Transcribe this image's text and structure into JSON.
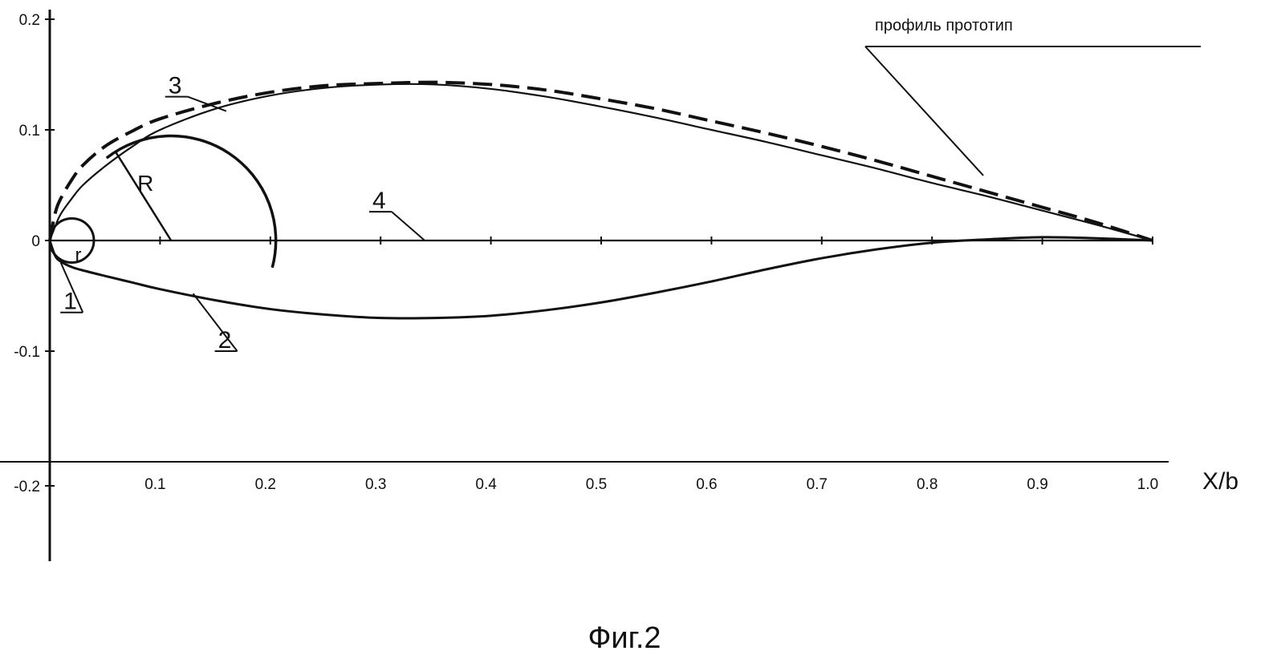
{
  "chart_data": {
    "type": "line",
    "title": "",
    "caption": "Фиг.2",
    "xlabel": "X/b",
    "ylabel": "",
    "xlim": [
      0,
      1.0
    ],
    "ylim": [
      -0.2,
      0.2
    ],
    "grid": false,
    "x_ticks": [
      {
        "v": 0.1,
        "label": "0.1"
      },
      {
        "v": 0.2,
        "label": "0.2"
      },
      {
        "v": 0.3,
        "label": "0.3"
      },
      {
        "v": 0.4,
        "label": "0.4"
      },
      {
        "v": 0.5,
        "label": "0.5"
      },
      {
        "v": 0.6,
        "label": "0.6"
      },
      {
        "v": 0.7,
        "label": "0.7"
      },
      {
        "v": 0.8,
        "label": "0.8"
      },
      {
        "v": 0.9,
        "label": "0.9"
      },
      {
        "v": 1.0,
        "label": "1.0"
      }
    ],
    "y_ticks": [
      {
        "v": 0.2,
        "label": "0.2"
      },
      {
        "v": 0.1,
        "label": "0.1"
      },
      {
        "v": 0,
        "label": "0"
      },
      {
        "v": -0.1,
        "label": "-0.1"
      },
      {
        "v": -0.2,
        "label": "-0.2"
      }
    ],
    "series": [
      {
        "id": "upper-surface",
        "style": "solid",
        "x": [
          0,
          0.005,
          0.01,
          0.02,
          0.03,
          0.05,
          0.075,
          0.1,
          0.15,
          0.2,
          0.25,
          0.3,
          0.35,
          0.4,
          0.45,
          0.5,
          0.55,
          0.6,
          0.65,
          0.7,
          0.75,
          0.8,
          0.85,
          0.9,
          0.95,
          1.0
        ],
        "y": [
          0,
          0.013,
          0.024,
          0.038,
          0.05,
          0.067,
          0.085,
          0.1,
          0.119,
          0.131,
          0.138,
          0.141,
          0.141,
          0.137,
          0.13,
          0.121,
          0.111,
          0.1,
          0.089,
          0.077,
          0.065,
          0.052,
          0.04,
          0.027,
          0.014,
          0
        ]
      },
      {
        "id": "prototype-upper-surface",
        "name": "профиль прототип",
        "style": "dashed",
        "x": [
          0,
          0.005,
          0.01,
          0.02,
          0.03,
          0.05,
          0.075,
          0.1,
          0.15,
          0.2,
          0.25,
          0.3,
          0.35,
          0.4,
          0.45,
          0.5,
          0.55,
          0.6,
          0.65,
          0.7,
          0.75,
          0.8,
          0.85,
          0.9,
          0.95,
          1.0
        ],
        "y": [
          0,
          0.025,
          0.038,
          0.055,
          0.068,
          0.085,
          0.099,
          0.11,
          0.124,
          0.134,
          0.14,
          0.142,
          0.143,
          0.141,
          0.136,
          0.128,
          0.119,
          0.108,
          0.097,
          0.085,
          0.072,
          0.058,
          0.044,
          0.03,
          0.016,
          0
        ]
      },
      {
        "id": "lower-surface",
        "style": "solid",
        "x": [
          0,
          0.005,
          0.01,
          0.02,
          0.03,
          0.05,
          0.075,
          0.1,
          0.15,
          0.2,
          0.25,
          0.3,
          0.35,
          0.4,
          0.45,
          0.5,
          0.55,
          0.6,
          0.65,
          0.7,
          0.75,
          0.8,
          0.85,
          0.9,
          0.95,
          1.0
        ],
        "y": [
          0,
          -0.014,
          -0.019,
          -0.024,
          -0.027,
          -0.032,
          -0.038,
          -0.044,
          -0.054,
          -0.062,
          -0.067,
          -0.07,
          -0.07,
          -0.068,
          -0.063,
          -0.056,
          -0.047,
          -0.037,
          -0.026,
          -0.016,
          -0.008,
          -0.002,
          0.001,
          0.003,
          0.002,
          0
        ]
      },
      {
        "id": "chord-line",
        "style": "solid",
        "x": [
          0,
          1.0
        ],
        "y": [
          0,
          0
        ]
      }
    ],
    "construction": {
      "small_circle": {
        "center": [
          0.02,
          0
        ],
        "radius": 0.02,
        "label": "r"
      },
      "large_arc": {
        "center": [
          0.11,
          0
        ],
        "radius": 0.095,
        "label": "R"
      }
    },
    "callouts": [
      {
        "id": "1",
        "label": "1",
        "target": [
          0.01,
          -0.02
        ],
        "anchor": [
          0.03,
          -0.065
        ]
      },
      {
        "id": "2",
        "label": "2",
        "target": [
          0.13,
          -0.048
        ],
        "anchor": [
          0.17,
          -0.1
        ]
      },
      {
        "id": "3",
        "label": "3",
        "target": [
          0.16,
          0.117
        ],
        "anchor": [
          0.125,
          0.13
        ]
      },
      {
        "id": "4",
        "label": "4",
        "target": [
          0.34,
          0
        ],
        "anchor": [
          0.31,
          0.026
        ]
      }
    ],
    "prototype_label": {
      "text": "профиль прототип",
      "target": [
        0.65,
        0.095
      ],
      "anchor": [
        0.73,
        0.163
      ]
    }
  }
}
